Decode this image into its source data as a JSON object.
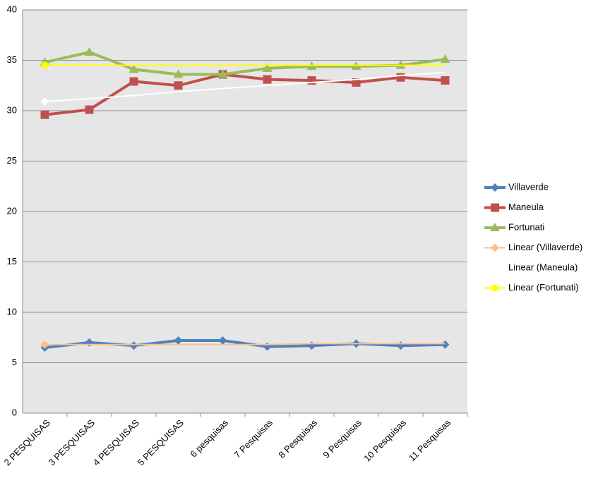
{
  "chart_data": {
    "type": "line",
    "categories": [
      "2 PESQUISAS",
      "3 PESQUISAS",
      "4 PESQUISAS",
      "5 PESQUISAS",
      "6 pesquisas",
      "7 Pesquisas",
      "8 Pesquisas",
      "9 Pesquisas",
      "10 Pesquisas",
      "11 Pesquisas"
    ],
    "series": [
      {
        "name": "Villaverde",
        "color": "#4f81bd",
        "marker": "diamond",
        "values": [
          6.5,
          7.0,
          6.7,
          7.2,
          7.2,
          6.6,
          6.7,
          6.9,
          6.7,
          6.8
        ]
      },
      {
        "name": "Maneula",
        "color": "#c0504d",
        "marker": "square",
        "values": [
          29.6,
          30.1,
          32.9,
          32.5,
          33.6,
          33.1,
          33.0,
          32.8,
          33.3,
          33.0
        ]
      },
      {
        "name": "Fortunati",
        "color": "#9bbb59",
        "marker": "triangle",
        "values": [
          34.8,
          35.8,
          34.1,
          33.6,
          33.6,
          34.2,
          34.4,
          34.4,
          34.5,
          35.1
        ]
      },
      {
        "name": "Linear (Villaverde)",
        "color": "#f9bf8f",
        "marker": "diamond",
        "values": [
          6.8,
          6.8,
          6.8,
          6.8,
          6.8,
          6.8,
          6.9,
          6.9,
          6.9,
          6.9
        ]
      },
      {
        "name": "Linear (Maneula)",
        "color": "#ffffff",
        "marker": "diamond",
        "values": [
          30.9,
          31.2,
          31.5,
          31.9,
          32.2,
          32.5,
          32.8,
          33.1,
          33.5,
          33.8
        ]
      },
      {
        "name": "Linear (Fortunati)",
        "color": "#ffff00",
        "marker": "circle",
        "values": [
          34.5,
          34.5,
          34.5,
          34.5,
          34.5,
          34.5,
          34.5,
          34.5,
          34.5,
          34.5
        ]
      }
    ],
    "ylim": [
      0,
      40
    ],
    "yticks": [
      0,
      5,
      10,
      15,
      20,
      25,
      30,
      35,
      40
    ],
    "grid": true,
    "legend": "right"
  }
}
